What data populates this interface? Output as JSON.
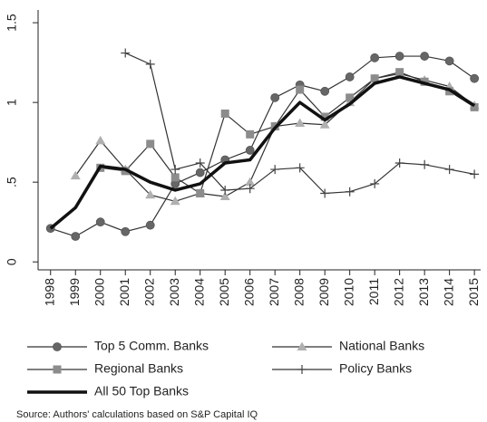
{
  "chart_data": {
    "type": "line",
    "x": [
      1998,
      1999,
      2000,
      2001,
      2002,
      2003,
      2004,
      2005,
      2006,
      2007,
      2008,
      2009,
      2010,
      2011,
      2012,
      2013,
      2014,
      2015
    ],
    "xlim": [
      1997.5,
      2015.25
    ],
    "xticks": [
      1998,
      1999,
      2000,
      2001,
      2002,
      2003,
      2004,
      2005,
      2006,
      2007,
      2008,
      2009,
      2010,
      2011,
      2012,
      2013,
      2014,
      2015
    ],
    "ylim": [
      -0.05,
      1.58
    ],
    "yticks": [
      0,
      {
        "value": 0.5,
        "label": ".5"
      },
      1,
      1.5
    ],
    "line_color": "#333333",
    "series": [
      {
        "name": "Top 5 Comm. Banks",
        "marker": "circle",
        "color": "#666666",
        "width": 1.2,
        "values": [
          0.21,
          0.16,
          0.25,
          0.19,
          0.23,
          0.49,
          0.56,
          0.64,
          0.7,
          1.03,
          1.11,
          1.07,
          1.16,
          1.28,
          1.29,
          1.29,
          1.26,
          1.15
        ]
      },
      {
        "name": "National Banks",
        "marker": "triangle",
        "color": "#b0b0b0",
        "width": 1.2,
        "values": [
          null,
          0.54,
          0.76,
          0.58,
          0.42,
          0.38,
          0.43,
          0.41,
          0.5,
          0.85,
          0.87,
          0.86,
          1.0,
          1.15,
          1.18,
          1.14,
          1.1,
          0.98
        ]
      },
      {
        "name": "Regional Banks",
        "marker": "square",
        "color": "#8c8c8c",
        "width": 1.2,
        "values": [
          null,
          null,
          0.59,
          0.57,
          0.74,
          0.53,
          0.43,
          0.93,
          0.8,
          0.85,
          1.08,
          0.91,
          1.03,
          1.15,
          1.19,
          1.13,
          1.07,
          0.97
        ]
      },
      {
        "name": "Policy Banks",
        "marker": "plus",
        "color": "#444444",
        "width": 1.2,
        "values": [
          null,
          null,
          null,
          1.31,
          1.24,
          0.58,
          0.62,
          0.45,
          0.46,
          0.58,
          0.59,
          0.43,
          0.44,
          0.49,
          0.62,
          0.61,
          0.58,
          0.55
        ]
      },
      {
        "name": "All 50 Top Banks",
        "marker": "none",
        "color": "#111111",
        "width": 3.5,
        "values": [
          0.21,
          0.34,
          0.6,
          0.58,
          0.5,
          0.45,
          0.49,
          0.62,
          0.64,
          0.84,
          1.0,
          0.89,
          0.99,
          1.12,
          1.16,
          1.12,
          1.08,
          0.98
        ]
      }
    ],
    "source": "Source: Authors' calculations based on S&P Capital IQ"
  }
}
